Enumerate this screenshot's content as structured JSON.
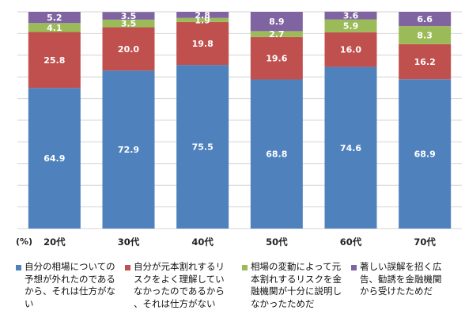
{
  "chart_data": {
    "type": "bar",
    "stacked": true,
    "unit_label": "(%)",
    "categories": [
      "20代",
      "30代",
      "40代",
      "50代",
      "60代",
      "70代"
    ],
    "series": [
      {
        "name": "自分の相場についての予想が外れたのであるから、それは仕方がない",
        "color": "#4f81bd",
        "values": [
          64.9,
          72.9,
          75.5,
          68.8,
          74.6,
          68.9
        ]
      },
      {
        "name": "自分が元本割れするリスクをよく理解していなかったのであるから、それは仕方がない",
        "color": "#c0504d",
        "values": [
          25.8,
          20.0,
          19.8,
          19.6,
          16.0,
          16.2
        ]
      },
      {
        "name": "相場の変動によって元本割れするリスクを金融機関が十分に説明しなかったためだ",
        "color": "#9bbb59",
        "values": [
          4.1,
          3.5,
          1.9,
          2.7,
          5.9,
          8.3
        ]
      },
      {
        "name": "著しい誤解を招く広告、勧誘を金融機関から受けたためだ",
        "color": "#8064a2",
        "values": [
          5.2,
          3.5,
          2.8,
          8.9,
          3.6,
          6.6
        ]
      }
    ],
    "value_labels": [
      [
        "64.9",
        "72.9",
        "75.5",
        "68.8",
        "74.6",
        "68.9"
      ],
      [
        "25.8",
        "20.0",
        "19.8",
        "19.6",
        "16.0",
        "16.2"
      ],
      [
        "4.1",
        "3.5",
        "1.9",
        "2.7",
        "5.9",
        "8.3"
      ],
      [
        "5.2",
        "3.5",
        "2.8",
        "8.9",
        "3.6",
        "6.6"
      ]
    ],
    "ylim": [
      0,
      100
    ],
    "gridlines": [
      0,
      10,
      20,
      30,
      40,
      50,
      60,
      70,
      80,
      90,
      100
    ],
    "grid": true,
    "legend_position": "bottom"
  },
  "legend": {
    "items": [
      {
        "label": "自分の相場についての予想が外れたのであるから、それは仕方がない",
        "display": "自分の相場についての予想が外れたのであるから、それは仕方がない",
        "color": "#4f81bd"
      },
      {
        "label": "自分が元本割れするリスクをよく理解していなかったのであるから、それは仕方がない",
        "display": "自分が元本割れするリスクをよく理解していなかったのであるから、それは仕方がない",
        "color": "#c0504d"
      },
      {
        "label": "相場の変動によって元本割れするリスクを金融機関が十分に説明しなかったためだ",
        "display": "相場の変動によって元本割れするリスクを金融機関が十分に説明しなかったためだ",
        "color": "#9bbb59"
      },
      {
        "label": "著しい誤解を招く広告、勧誘を金融機関から受けたためだ",
        "display": "著しい誤解を招く広告、勧誘を金融機関から受けたためだ",
        "color": "#8064a2"
      }
    ]
  }
}
